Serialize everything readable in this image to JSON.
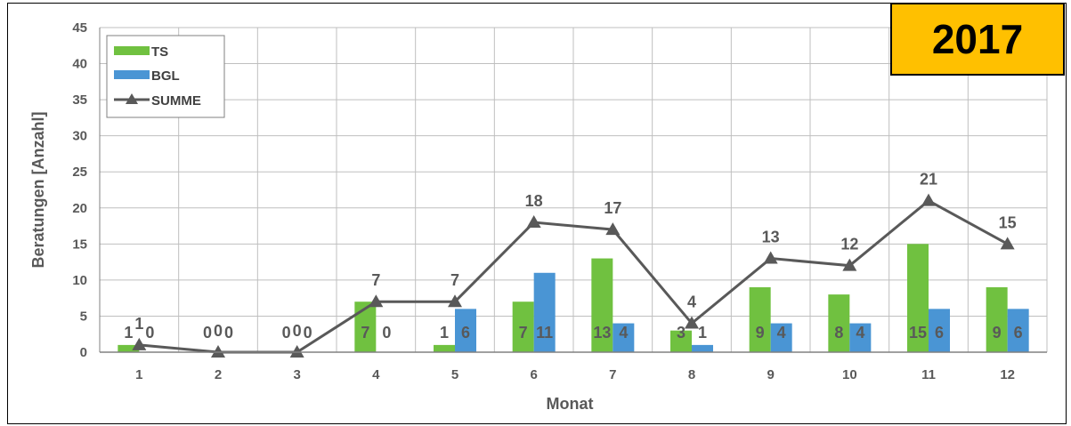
{
  "badge": {
    "year": "2017",
    "color": "#ffc000"
  },
  "chart_data": {
    "type": "bar",
    "xlabel": "Monat",
    "ylabel": "Beratungen [Anzahl]",
    "ylim": [
      0,
      45
    ],
    "yticks": [
      0,
      5,
      10,
      15,
      20,
      25,
      30,
      35,
      40,
      45
    ],
    "categories": [
      "1",
      "2",
      "3",
      "4",
      "5",
      "6",
      "7",
      "8",
      "9",
      "10",
      "11",
      "12"
    ],
    "grid": true,
    "legend_position": "top-left",
    "series": [
      {
        "name": "TS",
        "type": "bar",
        "color": "#70c140",
        "values": [
          1,
          0,
          0,
          7,
          1,
          7,
          13,
          3,
          9,
          8,
          15,
          9
        ]
      },
      {
        "name": "BGL",
        "type": "bar",
        "color": "#4a95d4",
        "values": [
          0,
          0,
          0,
          0,
          6,
          11,
          4,
          1,
          4,
          4,
          6,
          6
        ]
      },
      {
        "name": "SUMME",
        "type": "line",
        "marker": "triangle",
        "color": "#595959",
        "values": [
          1,
          0,
          0,
          7,
          7,
          18,
          17,
          4,
          13,
          12,
          21,
          15
        ]
      }
    ]
  }
}
